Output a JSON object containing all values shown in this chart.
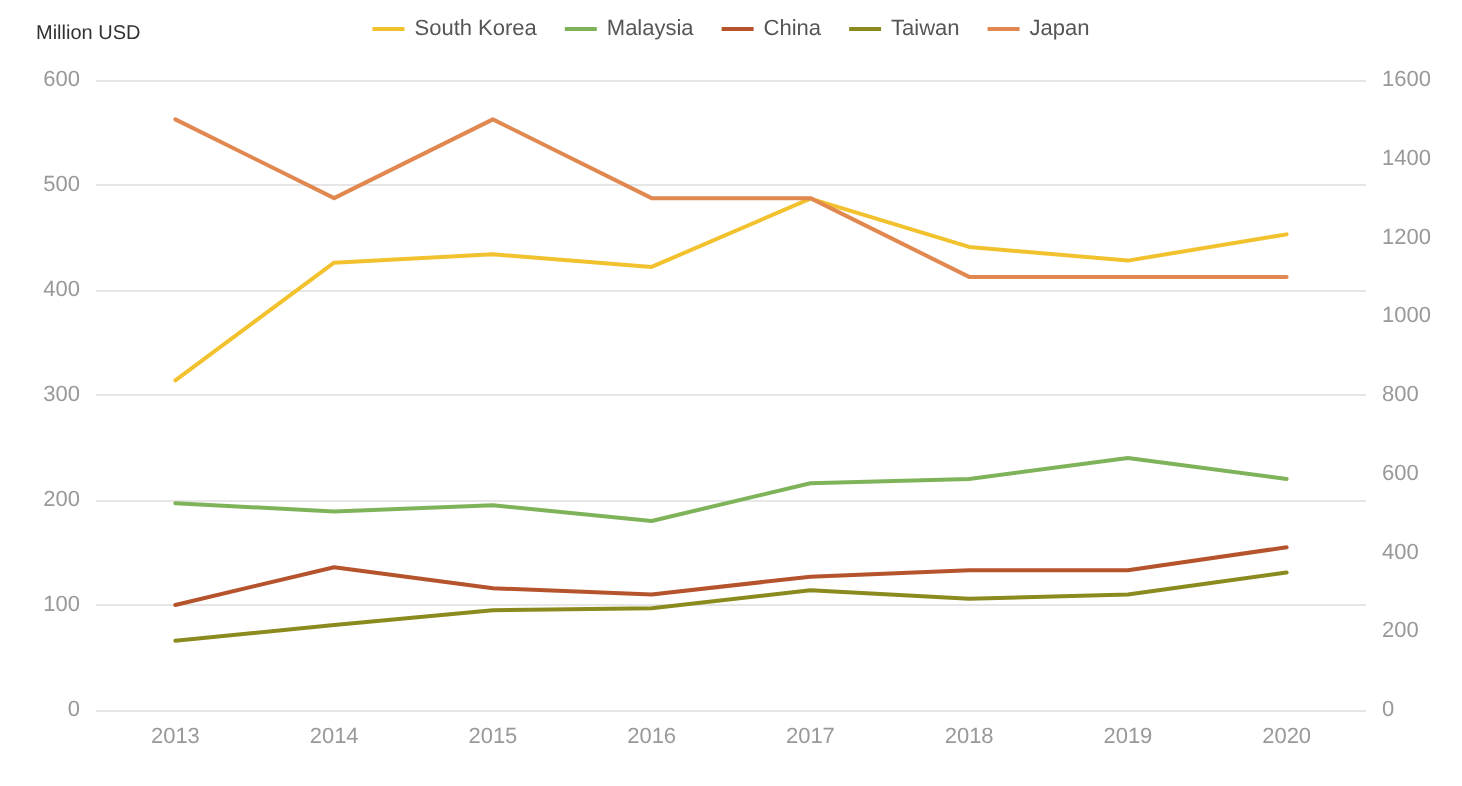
{
  "chart_data": {
    "type": "line",
    "ylabel": "Million USD",
    "categories": [
      "2013",
      "2014",
      "2015",
      "2016",
      "2017",
      "2018",
      "2019",
      "2020"
    ],
    "series": [
      {
        "name": "South Korea",
        "color": "#f2c12e",
        "values": [
          314,
          426,
          434,
          422,
          487,
          441,
          428,
          453
        ]
      },
      {
        "name": "Malaysia",
        "color": "#7fb35a",
        "values": [
          197,
          189,
          195,
          180,
          216,
          220,
          240,
          220
        ]
      },
      {
        "name": "China",
        "color": "#b5532c",
        "values": [
          100,
          136,
          116,
          110,
          127,
          133,
          133,
          155
        ]
      },
      {
        "name": "Taiwan",
        "color": "#8a8a1e",
        "values": [
          66,
          81,
          95,
          97,
          114,
          106,
          110,
          131
        ]
      },
      {
        "name": "Japan",
        "color": "#e0884f",
        "axis": "y2",
        "values": [
          1500,
          1300,
          1500,
          1300,
          1300,
          1100,
          1100,
          1100
        ]
      }
    ],
    "ylim": [
      0,
      600
    ],
    "yticks": [
      0,
      100,
      200,
      300,
      400,
      500,
      600
    ],
    "y2lim": [
      0,
      1600
    ],
    "y2ticks": [
      0,
      200,
      400,
      600,
      800,
      1000,
      1200,
      1400,
      1600
    ],
    "grid": "y",
    "legend": "top",
    "marker": "none",
    "line_style": "solid"
  }
}
